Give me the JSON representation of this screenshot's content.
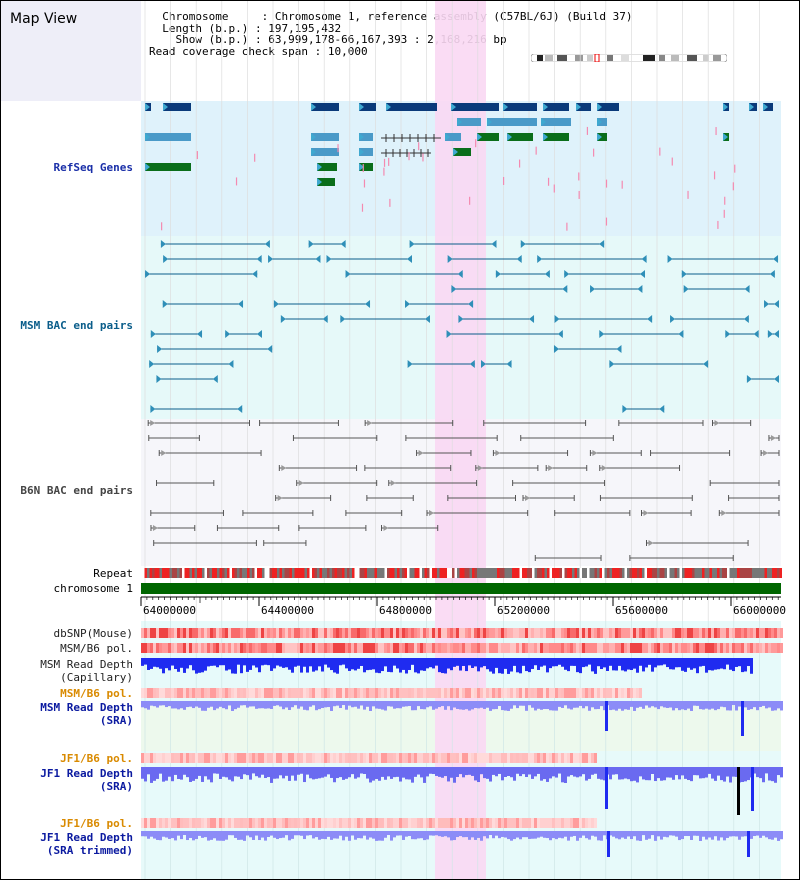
{
  "header": {
    "title": "Map View",
    "chromosome_label": "Chromosome",
    "chromosome_value": "Chromosome 1, reference assembly (C57BL/6J) (Build 37)",
    "length_label": "Length (b.p.)",
    "length_value": "197,195,432",
    "show_label": "Show (b.p.)",
    "show_value": "63,999,178-66,167,393 : 2,168,216 bp",
    "coverage_label": "Read coverage check span",
    "coverage_value": "10,000"
  },
  "tracks": {
    "refseq": "RefSeq Genes",
    "msm_bac": "MSM BAC end pairs",
    "b6n_bac": "B6N BAC end pairs",
    "repeat": "Repeat",
    "chromosome": "chromosome 1",
    "dbsnp": "dbSNP(Mouse)",
    "msm_b6_pol": "MSM/B6 pol.",
    "msm_read_depth_cap_1": "MSM Read Depth",
    "msm_read_depth_cap_2": "(Capillary)",
    "msm_b6_pol_2": "MSM/B6 pol.",
    "msm_read_depth_sra_1": "MSM Read Depth",
    "msm_read_depth_sra_2": "(SRA)",
    "jf1_b6_pol": "JF1/B6 pol.",
    "jf1_read_depth_sra_1": "JF1 Read Depth",
    "jf1_read_depth_sra_2": "(SRA)",
    "jf1_b6_pol_2": "JF1/B6 pol.",
    "jf1_read_depth_trim_1": "JF1 Read Depth",
    "jf1_read_depth_trim_2": "(SRA trimmed)"
  },
  "axis": {
    "ticks": [
      "64000000",
      "64400000",
      "64800000",
      "65200000",
      "65600000",
      "66000000"
    ]
  },
  "colors": {
    "refseq_bg": "#dff2fb",
    "msm_bg": "#e6f9f9",
    "b6n_bg": "#f6f6fa",
    "highlight": "#f9d8f3",
    "refseq_label": "#1a2fa8",
    "msm_label": "#0a5d8a",
    "b6n_label": "#444444",
    "orange_label": "#d98a00",
    "blue_label": "#0b1aa0",
    "chromosome_bar": "#006600"
  }
}
